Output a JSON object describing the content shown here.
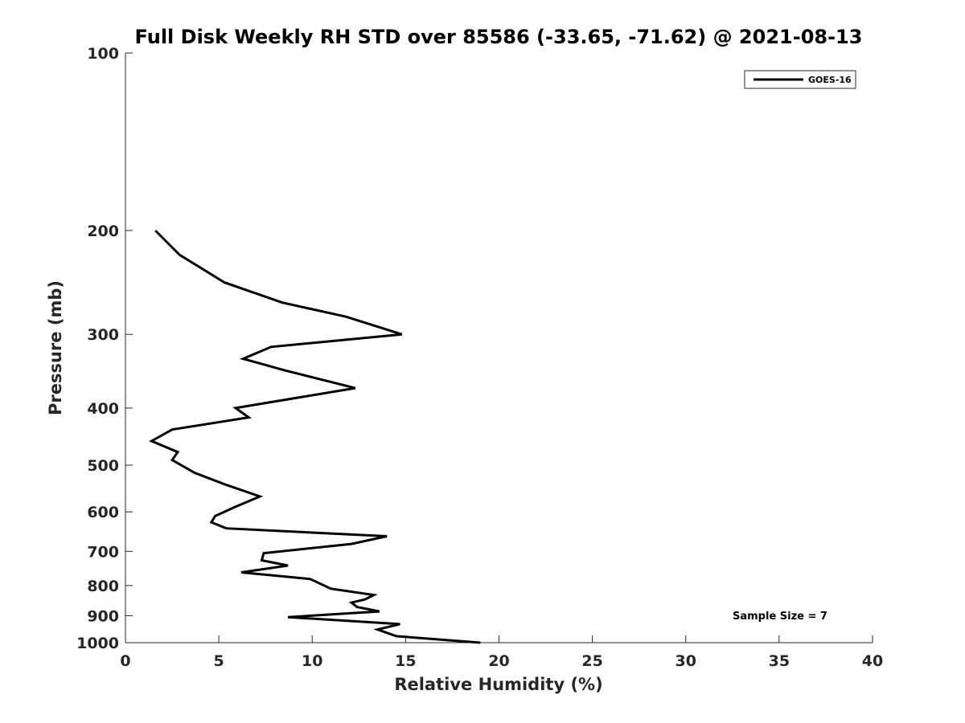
{
  "chart_data": {
    "type": "line",
    "title": "Full Disk Weekly RH STD over 85586 (-33.65, -71.62) @ 2021-08-13",
    "xlabel": "Relative Humidity (%)",
    "ylabel": "Pressure (mb)",
    "xlim": [
      0,
      40
    ],
    "ylim": [
      100,
      1000
    ],
    "yscale": "log",
    "y_reversed": true,
    "xticks": [
      0,
      5,
      10,
      15,
      20,
      25,
      30,
      35,
      40
    ],
    "xtick_labels": [
      "0",
      "5",
      "10",
      "15",
      "20",
      "25",
      "30",
      "35",
      "40"
    ],
    "yticks": [
      100,
      200,
      300,
      400,
      500,
      600,
      700,
      800,
      900,
      1000
    ],
    "ytick_labels": [
      "100",
      "200",
      "300",
      "400",
      "500",
      "600",
      "700",
      "800",
      "900",
      "1000"
    ],
    "grid": false,
    "legend_position": "top-right",
    "annotation": "Sample Size = 7",
    "series": [
      {
        "name": "GOES-16",
        "color": "#000000",
        "x": [
          1.6,
          2.9,
          5.3,
          8.4,
          11.8,
          14.8,
          7.8,
          6.3,
          8.5,
          12.3,
          5.9,
          6.6,
          2.5,
          1.4,
          2.8,
          2.5,
          3.7,
          5.4,
          7.2,
          5.8,
          4.8,
          4.6,
          5.4,
          14.0,
          12.1,
          7.4,
          7.3,
          8.7,
          6.2,
          9.9,
          11.0,
          13.3,
          12.8,
          12.1,
          12.4,
          13.6,
          8.7,
          14.7,
          13.5,
          14.5,
          19.0
        ],
        "y": [
          200,
          220,
          245,
          265,
          280,
          300,
          315,
          330,
          345,
          370,
          400,
          415,
          435,
          455,
          475,
          490,
          515,
          540,
          565,
          590,
          610,
          625,
          640,
          660,
          680,
          705,
          725,
          740,
          760,
          780,
          810,
          830,
          845,
          855,
          870,
          885,
          905,
          930,
          950,
          975,
          1000
        ]
      }
    ]
  }
}
